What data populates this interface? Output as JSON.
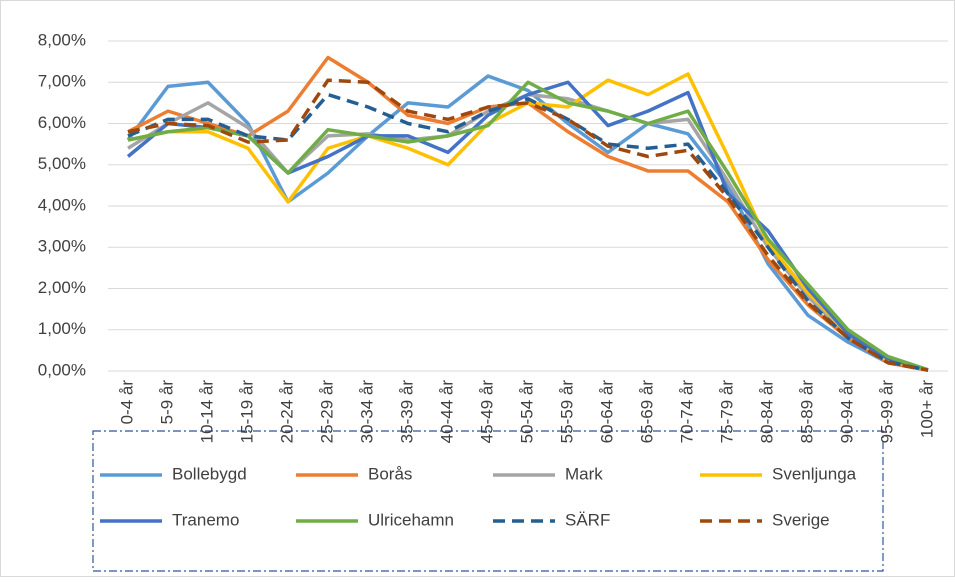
{
  "chart_data": {
    "type": "line",
    "categories": [
      "0-4 år",
      "5-9 år",
      "10-14 år",
      "15-19 år",
      "20-24 år",
      "25-29 år",
      "30-34 år",
      "35-39 år",
      "40-44 år",
      "45-49 år",
      "50-54 år",
      "55-59 år",
      "60-64 år",
      "65-69 år",
      "70-74 år",
      "75-79 år",
      "80-84 år",
      "85-89 år",
      "90-94 år",
      "95-99 år",
      "100+ år"
    ],
    "series": [
      {
        "name": "Bollebygd",
        "color": "#5B9BD5",
        "dash": false,
        "values": [
          5.6,
          6.9,
          7.0,
          6.0,
          4.1,
          4.8,
          5.7,
          6.5,
          6.4,
          7.15,
          6.8,
          6.0,
          5.3,
          6.0,
          5.75,
          4.5,
          2.6,
          1.35,
          0.7,
          0.2,
          0.02
        ]
      },
      {
        "name": "Borås",
        "color": "#ED7D31",
        "dash": false,
        "values": [
          5.8,
          6.3,
          6.0,
          5.7,
          6.3,
          7.6,
          7.0,
          6.2,
          6.0,
          6.4,
          6.5,
          5.8,
          5.2,
          4.85,
          4.85,
          4.1,
          2.7,
          1.6,
          0.8,
          0.2,
          0.02
        ]
      },
      {
        "name": "Mark",
        "color": "#A5A5A5",
        "dash": false,
        "values": [
          5.4,
          6.0,
          6.5,
          5.9,
          4.8,
          5.7,
          5.75,
          5.6,
          5.7,
          6.3,
          6.7,
          6.6,
          6.3,
          6.0,
          6.1,
          4.6,
          3.0,
          1.8,
          0.85,
          0.25,
          0.02
        ]
      },
      {
        "name": "Svenljunga",
        "color": "#FFC000",
        "dash": false,
        "values": [
          5.6,
          5.8,
          5.8,
          5.4,
          4.1,
          5.4,
          5.7,
          5.4,
          5.0,
          6.0,
          6.5,
          6.4,
          7.05,
          6.7,
          7.2,
          5.2,
          3.1,
          1.9,
          0.9,
          0.25,
          0.02
        ]
      },
      {
        "name": "Tranemo",
        "color": "#4472C4",
        "dash": false,
        "values": [
          5.2,
          6.0,
          5.9,
          5.7,
          4.8,
          5.2,
          5.7,
          5.7,
          5.3,
          6.2,
          6.7,
          7.0,
          5.95,
          6.3,
          6.75,
          4.3,
          3.4,
          2.0,
          0.9,
          0.3,
          0.03
        ]
      },
      {
        "name": "Ulricehamn",
        "color": "#70AD47",
        "dash": false,
        "values": [
          5.6,
          5.8,
          5.9,
          5.7,
          4.8,
          5.85,
          5.7,
          5.55,
          5.7,
          5.95,
          7.0,
          6.5,
          6.3,
          6.0,
          6.3,
          4.8,
          3.2,
          2.1,
          1.0,
          0.35,
          0.03
        ]
      },
      {
        "name": "SÄRF",
        "color": "#255E91",
        "dash": true,
        "values": [
          5.7,
          6.1,
          6.1,
          5.7,
          5.6,
          6.7,
          6.4,
          6.0,
          5.8,
          6.3,
          6.6,
          6.1,
          5.5,
          5.4,
          5.5,
          4.3,
          3.0,
          1.7,
          0.8,
          0.22,
          0.02
        ]
      },
      {
        "name": "Sverige",
        "color": "#9E480E",
        "dash": true,
        "values": [
          5.8,
          6.0,
          5.95,
          5.55,
          5.6,
          7.05,
          7.0,
          6.3,
          6.1,
          6.4,
          6.5,
          6.1,
          5.45,
          5.2,
          5.35,
          4.2,
          2.8,
          1.65,
          0.8,
          0.2,
          0.02
        ]
      }
    ],
    "ylim": [
      0,
      8
    ],
    "yticks": [
      {
        "value": 0,
        "label": "0,00%"
      },
      {
        "value": 1,
        "label": "1,00%"
      },
      {
        "value": 2,
        "label": "2,00%"
      },
      {
        "value": 3,
        "label": "3,00%"
      },
      {
        "value": 4,
        "label": "4,00%"
      },
      {
        "value": 5,
        "label": "5,00%"
      },
      {
        "value": 6,
        "label": "6,00%"
      },
      {
        "value": 7,
        "label": "7,00%"
      },
      {
        "value": 8,
        "label": "8,00%"
      }
    ],
    "grid": true,
    "legend": "bottom"
  }
}
